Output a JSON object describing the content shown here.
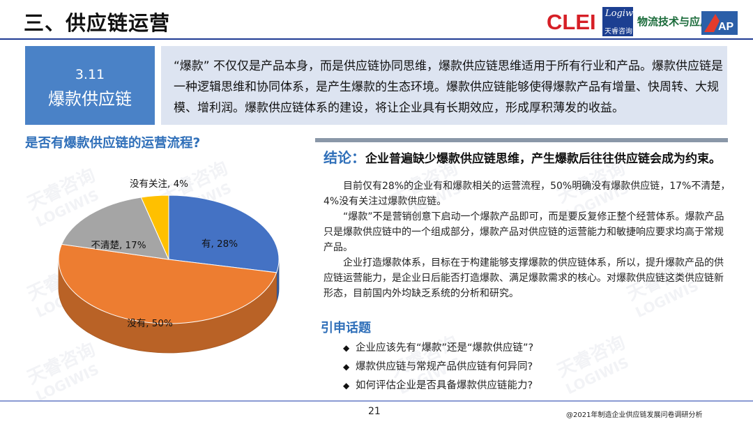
{
  "header": {
    "title": "三、供应链运营",
    "logos": {
      "clei": "CLEI",
      "logiwis_en": "Logiwis",
      "logiwis_cn": "天睿咨询",
      "wuliu": "物流技术与应用",
      "ap": "AP"
    }
  },
  "section": {
    "number": "3.11",
    "name": "爆款供应链",
    "description": "“爆款” 不仅仅是产品本身，而是供应链协同思维，爆款供应链思维适用于所有行业和产品。爆款供应链是一种逻辑思维和协同体系，是产生爆款的生态环境。爆款供应链能够使得爆款产品有增量、快周转、大规模、增利润。爆款供应链体系的建设，将让企业具有长期效应，形成厚积薄发的收益。"
  },
  "question_title": "是否有爆款供应链的运营流程?",
  "conclusion": {
    "label": "结论：",
    "text": "企业普遍缺少爆款供应链思维，产生爆款后往往供应链会成为约束。"
  },
  "paragraphs": [
    "目前仅有28%的企业有和爆款相关的运营流程，50%明确没有爆款供应链，17%不清楚，4%没有关注过爆款供应链。",
    "“爆款”不是营销创意下启动一个爆款产品即可，而是要反复修正整个经营体系。爆款产品只是爆款供应链中的一个组成部分，爆款产品对供应链的运营能力和敏捷响应要求均高于常规产品。",
    "企业打造爆款体系，目标在于构建能够支撑爆款的供应链体系，所以，提升爆款产品的供应链运营能力，是企业日后能否打造爆款、满足爆款需求的核心。对爆款供应链这类供应链新形态，目前国内外均缺乏系统的分析和研究。"
  ],
  "topics": {
    "title": "引申话题",
    "items": [
      "企业应该先有“爆款”还是“爆款供应链”?",
      "爆款供应链与常规产品供应链有何异同?",
      "如何评估企业是否具备爆款供应链能力?"
    ]
  },
  "footer": {
    "page_number": "21",
    "note": "@2021年制造企业供应链发展问卷调研分析"
  },
  "watermark": {
    "cn": "天睿咨询",
    "en": "LOGIWIS"
  },
  "chart_data": {
    "type": "pie",
    "style": "3d",
    "slices": [
      {
        "label": "有, 28%",
        "name": "有",
        "value": 28,
        "color": "#4472c4"
      },
      {
        "label": "没有, 50%",
        "name": "没有",
        "value": 50,
        "color": "#ed7d31"
      },
      {
        "label": "不清楚, 17%",
        "name": "不清楚",
        "value": 17,
        "color": "#a5a5a5"
      },
      {
        "label": "没有关注, 4%",
        "name": "没有关注",
        "value": 4,
        "color": "#ffc000"
      }
    ]
  }
}
